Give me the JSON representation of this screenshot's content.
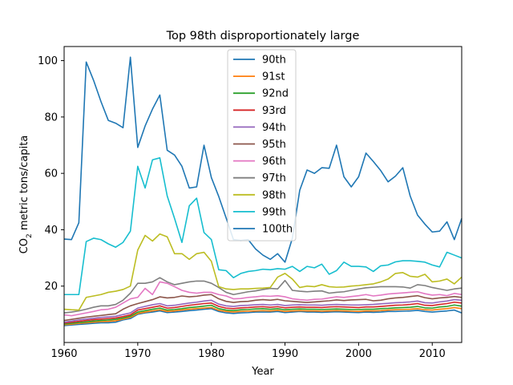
{
  "chart_data": {
    "type": "line",
    "title": "Top 98th disproportionately large",
    "xlabel": "Year",
    "ylabel": "CO2 metric tons/capita",
    "ylabel_parts": {
      "main": "CO",
      "sub": "2",
      "rest": " metric tons/capita"
    },
    "xlim": [
      1960,
      2014
    ],
    "ylim": [
      0,
      105
    ],
    "x_ticks": [
      1960,
      1970,
      1980,
      1990,
      2000,
      2010
    ],
    "y_ticks": [
      20,
      40,
      60,
      80,
      100
    ],
    "legend_position": "top-center",
    "grid": false,
    "x_start": 1960,
    "series": [
      {
        "name": "90th",
        "color": "#1f77b4",
        "values": [
          6,
          6.2,
          6.4,
          6.6,
          6.8,
          7,
          7,
          7.2,
          8,
          8.5,
          10,
          10.5,
          10.8,
          11.2,
          10.6,
          10.8,
          11,
          11.3,
          11.5,
          11.8,
          12,
          11,
          10.5,
          10.3,
          10.5,
          10.6,
          10.8,
          10.8,
          10.8,
          11,
          10.6,
          10.8,
          11,
          10.8,
          10.8,
          10.7,
          10.8,
          10.9,
          10.8,
          10.7,
          10.6,
          10.8,
          10.7,
          10.8,
          11,
          11,
          11.1,
          11.2,
          11.4,
          11,
          10.8,
          11,
          11.2,
          11.5,
          10.5
        ]
      },
      {
        "name": "91st",
        "color": "#ff7f0e",
        "values": [
          6.3,
          6.5,
          6.8,
          7,
          7.2,
          7.4,
          7.5,
          7.7,
          8.3,
          8.9,
          10.3,
          10.8,
          11.2,
          11.6,
          11,
          11.2,
          11.5,
          11.8,
          12,
          12.2,
          12.4,
          11.4,
          11,
          10.8,
          11,
          11.1,
          11.2,
          11.3,
          11.2,
          11.4,
          11,
          11.2,
          11.3,
          11.2,
          11.2,
          11.1,
          11.2,
          11.3,
          11.2,
          11.1,
          11,
          11.2,
          11.2,
          11.3,
          11.5,
          11.6,
          11.7,
          11.8,
          12,
          11.6,
          11.5,
          11.8,
          12,
          12.4,
          12
        ]
      },
      {
        "name": "92nd",
        "color": "#2ca02c",
        "values": [
          6.6,
          6.8,
          7.1,
          7.3,
          7.6,
          7.8,
          8,
          8.2,
          8.7,
          9.3,
          10.8,
          11.3,
          11.8,
          12.2,
          11.5,
          11.7,
          12,
          12.4,
          12.6,
          12.9,
          13.2,
          12,
          11.5,
          11.3,
          11.6,
          11.7,
          11.9,
          12,
          11.8,
          12,
          11.6,
          11.8,
          11.9,
          11.8,
          11.8,
          11.7,
          11.8,
          11.9,
          11.8,
          11.7,
          11.7,
          11.8,
          11.8,
          12,
          12.1,
          12.3,
          12.4,
          12.5,
          12.8,
          12.3,
          12.2,
          12.6,
          12.8,
          13.3,
          12.9
        ]
      },
      {
        "name": "93rd",
        "color": "#d62728",
        "values": [
          6.9,
          7.2,
          7.5,
          7.8,
          8.1,
          8.3,
          8.5,
          8.7,
          9.2,
          9.8,
          11.5,
          12,
          12.5,
          13,
          12.2,
          12.4,
          12.8,
          13.2,
          13.5,
          13.8,
          14,
          12.8,
          12.2,
          12,
          12.3,
          12.4,
          12.6,
          12.7,
          12.5,
          12.7,
          12.3,
          12.5,
          12.6,
          12.5,
          12.5,
          12.4,
          12.6,
          12.7,
          12.6,
          12.5,
          12.4,
          12.6,
          12.6,
          12.8,
          13,
          13.2,
          13.3,
          13.5,
          13.8,
          13.2,
          13.1,
          13.5,
          13.8,
          14.3,
          14
        ]
      },
      {
        "name": "94th",
        "color": "#9467bd",
        "values": [
          7.2,
          7.6,
          8,
          8.3,
          8.6,
          8.9,
          9.1,
          9.3,
          9.9,
          10.5,
          12.2,
          12.8,
          13.4,
          13.8,
          13,
          13.2,
          13.6,
          14,
          14.3,
          14.7,
          15,
          13.6,
          13,
          12.8,
          13.1,
          13.2,
          13.4,
          13.5,
          13.3,
          13.5,
          13.1,
          13.3,
          13.4,
          13.3,
          13.3,
          13.2,
          13.4,
          13.5,
          13.4,
          13.3,
          13.3,
          13.4,
          13.5,
          13.7,
          13.9,
          14.1,
          14.2,
          14.4,
          14.7,
          14.1,
          14,
          14.4,
          14.7,
          15.2,
          15
        ]
      },
      {
        "name": "95th",
        "color": "#8c564b",
        "values": [
          7.8,
          8.2,
          8.6,
          9,
          9.3,
          9.6,
          9.9,
          10.2,
          11.8,
          13,
          13.8,
          14.5,
          15.2,
          16.2,
          15.8,
          16,
          16.5,
          16.2,
          16.4,
          16.8,
          17,
          15.5,
          14.6,
          14.2,
          14.5,
          14.6,
          15,
          15.2,
          15,
          15.3,
          14.8,
          14.6,
          14.4,
          14.2,
          14.4,
          14.6,
          14.8,
          15.1,
          14.9,
          15.1,
          15.2,
          15.3,
          14.8,
          15,
          15.5,
          15.8,
          16,
          16.3,
          16.6,
          15.9,
          15.5,
          15.8,
          16,
          16.3,
          16
        ]
      },
      {
        "name": "96th",
        "color": "#e377c2",
        "values": [
          9.8,
          9.5,
          10,
          10.5,
          11,
          11.6,
          11.8,
          12.5,
          14,
          15.5,
          16,
          19.2,
          17,
          21.5,
          21,
          19.8,
          18.5,
          17.8,
          17.5,
          17.8,
          17.8,
          17,
          16.5,
          15.5,
          15.6,
          16,
          16.2,
          16.5,
          16.4,
          16.6,
          16.2,
          15.5,
          15.2,
          15,
          15.3,
          15.4,
          15.8,
          16.2,
          16,
          16.3,
          16.6,
          17,
          16.5,
          16.8,
          17.2,
          17.4,
          17.6,
          17.8,
          18,
          17.3,
          16.8,
          17,
          16.6,
          17.4,
          17
        ]
      },
      {
        "name": "97th",
        "color": "#7f7f7f",
        "values": [
          10.5,
          10.8,
          11.2,
          11.8,
          12.5,
          13,
          13,
          13.5,
          15,
          17.5,
          21,
          21,
          21.5,
          23,
          21.5,
          20.5,
          21,
          21.5,
          21.8,
          21.8,
          21,
          19.5,
          17.8,
          17,
          17.5,
          18,
          18.3,
          18.8,
          19.2,
          19,
          22,
          18.5,
          18.2,
          18,
          18.2,
          18.3,
          17.5,
          17.8,
          18,
          18.5,
          19,
          19.4,
          19.6,
          19.8,
          19.8,
          19.8,
          19.7,
          19.3,
          20.5,
          20.2,
          19.5,
          19,
          18.5,
          19,
          19.3
        ]
      },
      {
        "name": "98th",
        "color": "#bcbd22",
        "values": [
          11.8,
          11.6,
          11.5,
          16,
          16.5,
          17,
          17.8,
          18.2,
          18.8,
          20,
          32.8,
          38,
          36,
          38.5,
          37.5,
          31.5,
          31.5,
          29.5,
          31.5,
          32,
          28.8,
          19.8,
          19,
          18.8,
          19,
          19,
          19.2,
          19.3,
          19.5,
          23.2,
          24.5,
          22.5,
          19.5,
          20,
          19.8,
          20.5,
          19.8,
          19.6,
          19.7,
          20,
          20.2,
          20.5,
          20.8,
          21.5,
          22.5,
          24.5,
          24.8,
          23.5,
          23.2,
          24.2,
          21.5,
          21.8,
          22.5,
          20.8,
          23.2
        ]
      },
      {
        "name": "99th",
        "color": "#17becf",
        "values": [
          17,
          17,
          17,
          35.8,
          37,
          36.5,
          35,
          33.8,
          35.5,
          39.5,
          62.5,
          54.8,
          64.8,
          65.5,
          52,
          44,
          35.5,
          48.5,
          51.2,
          39,
          36.5,
          25.8,
          25.5,
          23,
          24.5,
          25.2,
          25.5,
          26,
          25.8,
          26.2,
          26,
          27,
          25.2,
          27,
          26.5,
          27.8,
          24.2,
          25.5,
          28.5,
          27,
          27,
          26.8,
          25.2,
          27.2,
          27.5,
          28.6,
          29,
          29,
          28.8,
          28.5,
          27.5,
          26.8,
          32,
          31,
          30
        ]
      },
      {
        "name": "100th",
        "color": "#1f77b4",
        "values": [
          36.7,
          36.5,
          42.5,
          99.5,
          93,
          85.5,
          78.8,
          77.8,
          76.2,
          101.2,
          69.2,
          76.8,
          82.8,
          87.8,
          68.2,
          66.5,
          62.5,
          54.8,
          55.2,
          70,
          58.5,
          51.8,
          44.2,
          36.5,
          36.2,
          36.5,
          33.2,
          31,
          29.5,
          31.5,
          28.5,
          37,
          54,
          61.2,
          60,
          62,
          61.8,
          70,
          58.8,
          55.2,
          58.8,
          67.2,
          64.2,
          61,
          57,
          59,
          62,
          52,
          45.2,
          42,
          39.2,
          39.5,
          42.8,
          36.5,
          44
        ]
      }
    ]
  }
}
